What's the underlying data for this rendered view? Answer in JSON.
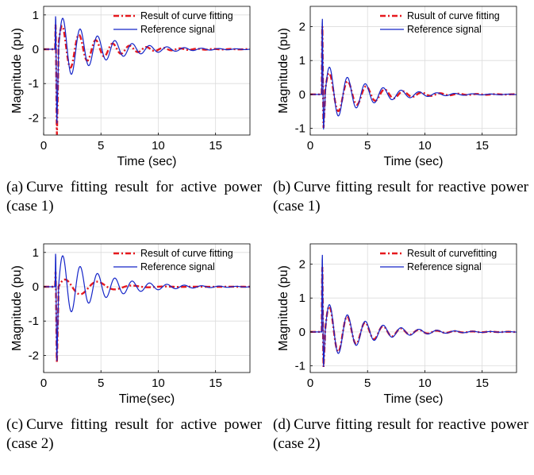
{
  "colors": {
    "fit": "#e6191e",
    "ref": "#1525c8",
    "grid": "#dcdcdc"
  },
  "chart_data": [
    {
      "type": "line",
      "panel_tag": "(a)",
      "caption": "Curve fitting result for active power (case 1)",
      "xlabel": "Time (sec)",
      "ylabel": "Magnitude (pu)",
      "xlim": [
        0,
        18
      ],
      "ylim": [
        -2.5,
        1.25
      ],
      "xticks": [
        0,
        5,
        10,
        15
      ],
      "yticks": [
        -2,
        -1,
        0,
        1
      ],
      "grid": true,
      "legend": "top-right",
      "series": [
        {
          "name": "Result of curve fitting",
          "style": "dash-dot",
          "color": "#e6191e",
          "signal": "active",
          "amp": 0.75,
          "freq": 0.68,
          "decay": 0.32,
          "phase": 0.2,
          "spikeMin": -2.65,
          "spikeMax": 0.9
        },
        {
          "name": "Reference signal",
          "style": "solid",
          "color": "#1525c8",
          "signal": "active",
          "amp": 1.0,
          "freq": 0.66,
          "decay": 0.28,
          "phase": 0.0,
          "spikeMin": -2.3,
          "spikeMax": 1.2
        }
      ]
    },
    {
      "type": "line",
      "panel_tag": "(b)",
      "caption": "Curve fitting result for reactive power (case 1)",
      "xlabel": "Time (sec)",
      "ylabel": "Magnitude (pu)",
      "xlim": [
        0,
        18
      ],
      "ylim": [
        -1.2,
        2.6
      ],
      "xticks": [
        0,
        5,
        10,
        15
      ],
      "yticks": [
        -1,
        0,
        1,
        2
      ],
      "grid": true,
      "legend": "top-right",
      "series": [
        {
          "name": "Rusult of curve fitting",
          "style": "dash-dot",
          "color": "#e6191e",
          "signal": "reactive",
          "amp": 0.7,
          "freq": 0.62,
          "decay": 0.3,
          "phase": 0.15,
          "spikeMin": -1.05,
          "spikeMax": 2.35
        },
        {
          "name": "Reference signal",
          "style": "solid",
          "color": "#1525c8",
          "signal": "reactive",
          "amp": 0.9,
          "freq": 0.64,
          "decay": 0.3,
          "phase": 0.0,
          "spikeMin": -1.1,
          "spikeMax": 2.6
        }
      ]
    },
    {
      "type": "line",
      "panel_tag": "(c)",
      "caption": "Curve fitting result for active power (case 2)",
      "xlabel": "Time(sec)",
      "ylabel": "Magnitude (pu)",
      "xlim": [
        0,
        18
      ],
      "ylim": [
        -2.5,
        1.25
      ],
      "xticks": [
        0,
        5,
        10,
        15
      ],
      "yticks": [
        -2,
        -1,
        0,
        1
      ],
      "grid": true,
      "legend": "top-right",
      "series": [
        {
          "name": "Result of curve fitting",
          "style": "dash-dot",
          "color": "#e6191e",
          "signal": "active2",
          "amp": 0.55,
          "freq": 0.35,
          "decay": 0.45,
          "phase": 0.0,
          "spikeMin": -2.35,
          "spikeMax": 0.55
        },
        {
          "name": "Reference signal",
          "style": "solid",
          "color": "#1525c8",
          "signal": "active",
          "amp": 1.0,
          "freq": 0.66,
          "decay": 0.28,
          "phase": 0.0,
          "spikeMin": -2.3,
          "spikeMax": 1.2
        }
      ]
    },
    {
      "type": "line",
      "panel_tag": "(d)",
      "caption": "Curve fitting result for reactive power (case 2)",
      "xlabel": "Time (sec)",
      "ylabel": "Magnitude (pu)",
      "xlim": [
        0,
        18
      ],
      "ylim": [
        -1.2,
        2.6
      ],
      "xticks": [
        0,
        5,
        10,
        15
      ],
      "yticks": [
        -1,
        0,
        1,
        2
      ],
      "grid": true,
      "legend": "top-right",
      "series": [
        {
          "name": "Result of curvefitting",
          "style": "dash-dot",
          "color": "#e6191e",
          "signal": "reactive",
          "amp": 0.85,
          "freq": 0.64,
          "decay": 0.32,
          "phase": 0.05,
          "spikeMin": -1.1,
          "spikeMax": 2.25
        },
        {
          "name": "Reference signal",
          "style": "solid",
          "color": "#1525c8",
          "signal": "reactive",
          "amp": 0.9,
          "freq": 0.64,
          "decay": 0.3,
          "phase": 0.0,
          "spikeMin": -1.1,
          "spikeMax": 2.65
        }
      ]
    }
  ]
}
